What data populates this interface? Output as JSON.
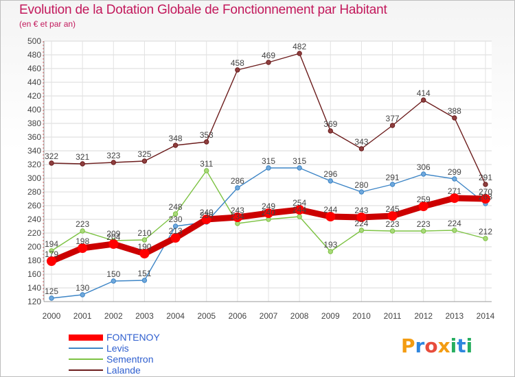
{
  "title": "Evolution de la Dotation Globale de Fonctionnement par Habitant",
  "subtitle": "(en € et par an)",
  "logo": {
    "text": "Proxiti",
    "letters": [
      "P",
      "r",
      "o",
      "x",
      "i",
      "t",
      "i"
    ],
    "colors": [
      "#f39c12",
      "#2e86de",
      "#e74c3c",
      "#f39c12",
      "#27ae60",
      "#2e86de",
      "#27ae60"
    ]
  },
  "chart_data": {
    "type": "line",
    "title": "Evolution de la Dotation Globale de Fonctionnement par Habitant",
    "subtitle": "(en € et par an)",
    "x": [
      "2000",
      "2001",
      "2002",
      "2003",
      "2004",
      "2005",
      "2006",
      "2007",
      "2008",
      "2009",
      "2010",
      "2011",
      "2012",
      "2013",
      "2014"
    ],
    "ylim": [
      120,
      500
    ],
    "yticks": [
      120,
      140,
      160,
      180,
      200,
      220,
      240,
      260,
      280,
      300,
      320,
      340,
      360,
      380,
      400,
      420,
      440,
      460,
      480,
      500
    ],
    "grid": true,
    "legend_position": "bottom-left",
    "series": [
      {
        "name": "FONTENOY",
        "color": "#ff0000",
        "line_color": "#cc0000",
        "values": [
          179,
          198,
          204,
          190,
          213,
          240,
          243,
          249,
          254,
          244,
          243,
          245,
          259,
          271,
          270
        ],
        "labels": [
          "179",
          "198",
          "204",
          "190",
          "213",
          "240",
          "243",
          "249",
          "254",
          "244",
          "243",
          "245",
          "259",
          "271",
          "270"
        ]
      },
      {
        "name": "Levis",
        "color": "#6fa8dc",
        "line_color": "#3d85c6",
        "values": [
          125,
          130,
          150,
          151,
          230,
          236,
          286,
          315,
          315,
          296,
          280,
          291,
          306,
          299,
          263
        ],
        "labels": [
          "125",
          "130",
          "150",
          "151",
          "230",
          "236",
          "286",
          "315",
          "315",
          "296",
          "280",
          "291",
          "306",
          "299",
          "263"
        ]
      },
      {
        "name": "Sementron",
        "color": "#a9d97a",
        "line_color": "#7cc242",
        "values": [
          194,
          223,
          209,
          210,
          248,
          311,
          234,
          240,
          244,
          193,
          224,
          223,
          223,
          224,
          212
        ],
        "labels": [
          "194",
          "223",
          "209",
          "210",
          "248",
          "311",
          "234",
          "240",
          "244",
          "193",
          "224",
          "223",
          "223",
          "224",
          "212"
        ]
      },
      {
        "name": "Lalande",
        "color": "#8e3f3f",
        "line_color": "#6b1b1b",
        "values": [
          322,
          321,
          323,
          325,
          348,
          353,
          458,
          469,
          482,
          369,
          343,
          377,
          414,
          388,
          291
        ],
        "labels": [
          "322",
          "321",
          "323",
          "325",
          "348",
          "353",
          "458",
          "469",
          "482",
          "369",
          "343",
          "377",
          "414",
          "388",
          "291"
        ]
      }
    ]
  }
}
